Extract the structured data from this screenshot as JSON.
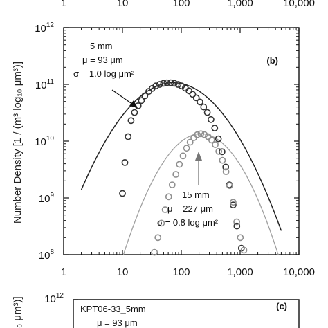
{
  "figure": {
    "top_strip_ticks": [
      "1",
      "10",
      "100",
      "1,000",
      "10,000"
    ]
  },
  "chart_data": [
    {
      "panel": "(b)",
      "type": "scatter",
      "xscale": "log",
      "yscale": "log",
      "xlim": [
        1,
        10000
      ],
      "ylim": [
        100000000.0,
        1000000000000.0
      ],
      "x_ticks": [
        "1",
        "10",
        "100",
        "1,000",
        "10,000"
      ],
      "y_ticks": [
        {
          "base": "10",
          "exp": "8"
        },
        {
          "base": "10",
          "exp": "9"
        },
        {
          "base": "10",
          "exp": "10"
        },
        {
          "base": "10",
          "exp": "11"
        },
        {
          "base": "10",
          "exp": "12"
        }
      ],
      "ylabel": "Number Density [1 / (m³ log₁₀ μm³)]",
      "xlabel": "",
      "grid": false,
      "annotations": {
        "a1_line1": "5 mm",
        "a1_line2": "μ = 93 μm",
        "a1_line3": "σ = 1.0 log μm²",
        "a2_line1": "15 mm",
        "a2_line2": "μ = 227 μm",
        "a2_line3": "σ = 0.8 log μm²"
      },
      "series": [
        {
          "color": "#333333",
          "points": [
            {
              "x": 10,
              "y": 1200000000.0
            },
            {
              "x": 11,
              "y": 4200000000.0
            },
            {
              "x": 12.5,
              "y": 12000000000.0
            },
            {
              "x": 14,
              "y": 23000000000.0
            },
            {
              "x": 16,
              "y": 32000000000.0
            },
            {
              "x": 18.5,
              "y": 42000000000.0
            },
            {
              "x": 21,
              "y": 52000000000.0
            },
            {
              "x": 24,
              "y": 63000000000.0
            },
            {
              "x": 28,
              "y": 75000000000.0
            },
            {
              "x": 32,
              "y": 85000000000.0
            },
            {
              "x": 37,
              "y": 94000000000.0
            },
            {
              "x": 43,
              "y": 100000000000.0
            },
            {
              "x": 50,
              "y": 105000000000.0
            },
            {
              "x": 57,
              "y": 107000000000.0
            },
            {
              "x": 66,
              "y": 107000000000.0
            },
            {
              "x": 76,
              "y": 105000000000.0
            },
            {
              "x": 88,
              "y": 100000000000.0
            },
            {
              "x": 101,
              "y": 94000000000.0
            },
            {
              "x": 117,
              "y": 86000000000.0
            },
            {
              "x": 135,
              "y": 77000000000.0
            },
            {
              "x": 156,
              "y": 67000000000.0
            },
            {
              "x": 180,
              "y": 58000000000.0
            },
            {
              "x": 208,
              "y": 49000000000.0
            },
            {
              "x": 240,
              "y": 40000000000.0
            },
            {
              "x": 277,
              "y": 32000000000.0
            },
            {
              "x": 320,
              "y": 24000000000.0
            },
            {
              "x": 370,
              "y": 17000000000.0
            },
            {
              "x": 427,
              "y": 11000000000.0
            },
            {
              "x": 493,
              "y": 6500000000.0
            },
            {
              "x": 570,
              "y": 3500000000.0
            },
            {
              "x": 658,
              "y": 1700000000.0
            },
            {
              "x": 760,
              "y": 750000000.0
            },
            {
              "x": 880,
              "y": 320000000.0
            },
            {
              "x": 1050,
              "y": 130000000.0
            }
          ]
        },
        {
          "color": "#8f8f8f",
          "points": [
            {
              "x": 35,
              "y": 110000000.0
            },
            {
              "x": 40,
              "y": 200000000.0
            },
            {
              "x": 46,
              "y": 360000000.0
            },
            {
              "x": 53,
              "y": 620000000.0
            },
            {
              "x": 61,
              "y": 1050000000.0
            },
            {
              "x": 70,
              "y": 1700000000.0
            },
            {
              "x": 81,
              "y": 2600000000.0
            },
            {
              "x": 93,
              "y": 3900000000.0
            },
            {
              "x": 107,
              "y": 5500000000.0
            },
            {
              "x": 123,
              "y": 7500000000.0
            },
            {
              "x": 141,
              "y": 9600000000.0
            },
            {
              "x": 163,
              "y": 11500000000.0
            },
            {
              "x": 187,
              "y": 13000000000.0
            },
            {
              "x": 215,
              "y": 13500000000.0
            },
            {
              "x": 248,
              "y": 13000000000.0
            },
            {
              "x": 285,
              "y": 12000000000.0
            },
            {
              "x": 328,
              "y": 10500000000.0
            },
            {
              "x": 378,
              "y": 8700000000.0
            },
            {
              "x": 434,
              "y": 6600000000.0
            },
            {
              "x": 500,
              "y": 4600000000.0
            },
            {
              "x": 575,
              "y": 2900000000.0
            },
            {
              "x": 662,
              "y": 1650000000.0
            },
            {
              "x": 761,
              "y": 840000000.0
            },
            {
              "x": 876,
              "y": 380000000.0
            },
            {
              "x": 1007,
              "y": 200000000.0
            },
            {
              "x": 1160,
              "y": 120000000.0
            }
          ]
        }
      ],
      "fits": [
        {
          "color": "#222222",
          "peak": 107000000000.0,
          "mu": 73,
          "sigma": 0.53
        },
        {
          "color": "#a0a0a0",
          "peak": 13500000000.0,
          "mu": 215,
          "sigma": 0.42
        }
      ]
    },
    {
      "panel": "(c)",
      "type": "scatter",
      "y_ticks": [
        {
          "base": "10",
          "exp": "12"
        }
      ],
      "ylabel_visible": "₀ μm³)]",
      "annotations": {
        "line1": "KPT06-33_5mm",
        "line2": "μ = 93 μm"
      }
    }
  ]
}
